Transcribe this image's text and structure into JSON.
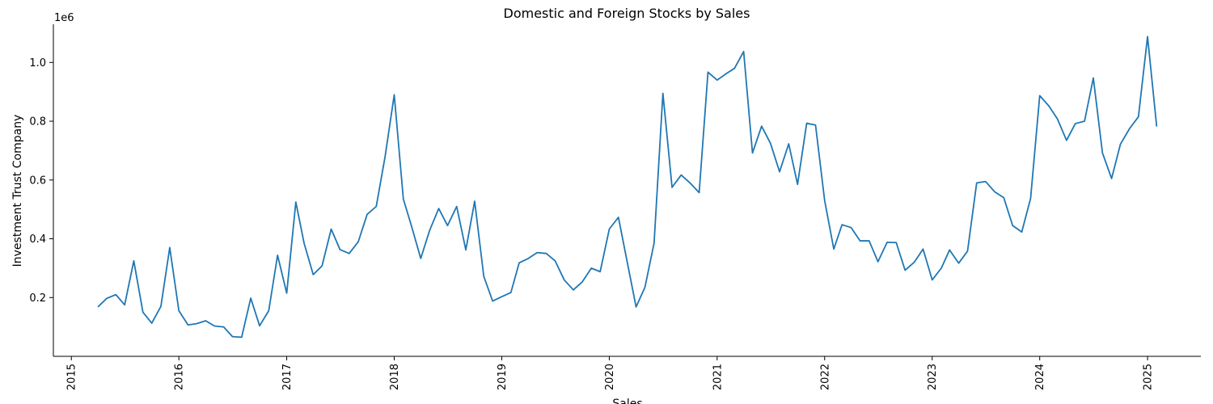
{
  "chart_data": {
    "type": "line",
    "title": "Domestic and Foreign Stocks by Sales",
    "xlabel": "Sales",
    "ylabel": "Investment Trust Company",
    "y_offset_label": "1e6",
    "xlim": [
      "2014-11-01",
      "2025-07-01"
    ],
    "ylim": [
      0.0,
      1.13
    ],
    "grid": false,
    "x_ticks": [
      {
        "date": "2015-01-01",
        "label": "2015"
      },
      {
        "date": "2016-01-01",
        "label": "2016"
      },
      {
        "date": "2017-01-01",
        "label": "2017"
      },
      {
        "date": "2018-01-01",
        "label": "2018"
      },
      {
        "date": "2019-01-01",
        "label": "2019"
      },
      {
        "date": "2020-01-01",
        "label": "2020"
      },
      {
        "date": "2021-01-01",
        "label": "2021"
      },
      {
        "date": "2022-01-01",
        "label": "2022"
      },
      {
        "date": "2023-01-01",
        "label": "2023"
      },
      {
        "date": "2024-01-01",
        "label": "2024"
      },
      {
        "date": "2025-01-01",
        "label": "2025"
      }
    ],
    "y_ticks": [
      {
        "value": 0.2,
        "label": "0.2"
      },
      {
        "value": 0.4,
        "label": "0.4"
      },
      {
        "value": 0.6,
        "label": "0.6"
      },
      {
        "value": 0.8,
        "label": "0.8"
      },
      {
        "value": 1.0,
        "label": "1.0"
      }
    ],
    "series": [
      {
        "color": "#1f77b4",
        "points": [
          [
            "2015-04-01",
            0.168
          ],
          [
            "2015-05-01",
            0.197
          ],
          [
            "2015-06-01",
            0.21
          ],
          [
            "2015-07-01",
            0.175
          ],
          [
            "2015-08-01",
            0.325
          ],
          [
            "2015-09-01",
            0.15
          ],
          [
            "2015-10-01",
            0.113
          ],
          [
            "2015-11-01",
            0.17
          ],
          [
            "2015-12-01",
            0.37
          ],
          [
            "2016-01-01",
            0.155
          ],
          [
            "2016-02-01",
            0.107
          ],
          [
            "2016-03-01",
            0.111
          ],
          [
            "2016-04-01",
            0.121
          ],
          [
            "2016-05-01",
            0.103
          ],
          [
            "2016-06-01",
            0.1
          ],
          [
            "2016-07-01",
            0.067
          ],
          [
            "2016-08-01",
            0.065
          ],
          [
            "2016-09-01",
            0.198
          ],
          [
            "2016-10-01",
            0.104
          ],
          [
            "2016-11-01",
            0.155
          ],
          [
            "2016-12-01",
            0.344
          ],
          [
            "2017-01-01",
            0.215
          ],
          [
            "2017-02-01",
            0.525
          ],
          [
            "2017-03-01",
            0.385
          ],
          [
            "2017-04-01",
            0.278
          ],
          [
            "2017-05-01",
            0.308
          ],
          [
            "2017-06-01",
            0.433
          ],
          [
            "2017-07-01",
            0.363
          ],
          [
            "2017-08-01",
            0.35
          ],
          [
            "2017-09-01",
            0.39
          ],
          [
            "2017-10-01",
            0.483
          ],
          [
            "2017-11-01",
            0.51
          ],
          [
            "2017-12-01",
            0.68
          ],
          [
            "2018-01-01",
            0.89
          ],
          [
            "2018-02-01",
            0.535
          ],
          [
            "2018-03-01",
            0.442
          ],
          [
            "2018-04-01",
            0.333
          ],
          [
            "2018-05-01",
            0.428
          ],
          [
            "2018-06-01",
            0.503
          ],
          [
            "2018-07-01",
            0.445
          ],
          [
            "2018-08-01",
            0.51
          ],
          [
            "2018-09-01",
            0.362
          ],
          [
            "2018-10-01",
            0.528
          ],
          [
            "2018-11-01",
            0.272
          ],
          [
            "2018-12-01",
            0.188
          ],
          [
            "2019-01-01",
            0.203
          ],
          [
            "2019-02-01",
            0.217
          ],
          [
            "2019-03-01",
            0.318
          ],
          [
            "2019-04-01",
            0.333
          ],
          [
            "2019-05-01",
            0.353
          ],
          [
            "2019-06-01",
            0.35
          ],
          [
            "2019-07-01",
            0.325
          ],
          [
            "2019-08-01",
            0.26
          ],
          [
            "2019-09-01",
            0.226
          ],
          [
            "2019-10-01",
            0.253
          ],
          [
            "2019-11-01",
            0.3
          ],
          [
            "2019-12-01",
            0.288
          ],
          [
            "2020-01-01",
            0.433
          ],
          [
            "2020-02-01",
            0.473
          ],
          [
            "2020-03-01",
            0.325
          ],
          [
            "2020-04-01",
            0.168
          ],
          [
            "2020-05-01",
            0.235
          ],
          [
            "2020-06-01",
            0.385
          ],
          [
            "2020-07-01",
            0.895
          ],
          [
            "2020-08-01",
            0.575
          ],
          [
            "2020-09-01",
            0.617
          ],
          [
            "2020-10-01",
            0.59
          ],
          [
            "2020-11-01",
            0.557
          ],
          [
            "2020-12-01",
            0.967
          ],
          [
            "2021-01-01",
            0.94
          ],
          [
            "2021-02-01",
            0.962
          ],
          [
            "2021-03-01",
            0.98
          ],
          [
            "2021-04-01",
            1.037
          ],
          [
            "2021-05-01",
            0.692
          ],
          [
            "2021-06-01",
            0.783
          ],
          [
            "2021-07-01",
            0.725
          ],
          [
            "2021-08-01",
            0.628
          ],
          [
            "2021-09-01",
            0.723
          ],
          [
            "2021-10-01",
            0.585
          ],
          [
            "2021-11-01",
            0.793
          ],
          [
            "2021-12-01",
            0.787
          ],
          [
            "2022-01-01",
            0.53
          ],
          [
            "2022-02-01",
            0.365
          ],
          [
            "2022-03-01",
            0.448
          ],
          [
            "2022-04-01",
            0.438
          ],
          [
            "2022-05-01",
            0.393
          ],
          [
            "2022-06-01",
            0.393
          ],
          [
            "2022-07-01",
            0.322
          ],
          [
            "2022-08-01",
            0.388
          ],
          [
            "2022-09-01",
            0.387
          ],
          [
            "2022-10-01",
            0.293
          ],
          [
            "2022-11-01",
            0.32
          ],
          [
            "2022-12-01",
            0.365
          ],
          [
            "2023-01-01",
            0.26
          ],
          [
            "2023-02-01",
            0.3
          ],
          [
            "2023-03-01",
            0.362
          ],
          [
            "2023-04-01",
            0.317
          ],
          [
            "2023-05-01",
            0.358
          ],
          [
            "2023-06-01",
            0.59
          ],
          [
            "2023-07-01",
            0.595
          ],
          [
            "2023-08-01",
            0.56
          ],
          [
            "2023-09-01",
            0.54
          ],
          [
            "2023-10-01",
            0.445
          ],
          [
            "2023-11-01",
            0.423
          ],
          [
            "2023-12-01",
            0.537
          ],
          [
            "2024-01-01",
            0.887
          ],
          [
            "2024-02-01",
            0.852
          ],
          [
            "2024-03-01",
            0.808
          ],
          [
            "2024-04-01",
            0.735
          ],
          [
            "2024-05-01",
            0.792
          ],
          [
            "2024-06-01",
            0.8
          ],
          [
            "2024-07-01",
            0.947
          ],
          [
            "2024-08-01",
            0.692
          ],
          [
            "2024-09-01",
            0.605
          ],
          [
            "2024-10-01",
            0.722
          ],
          [
            "2024-11-01",
            0.775
          ],
          [
            "2024-12-01",
            0.815
          ],
          [
            "2025-01-01",
            1.088
          ],
          [
            "2025-02-01",
            0.782
          ]
        ]
      }
    ]
  }
}
